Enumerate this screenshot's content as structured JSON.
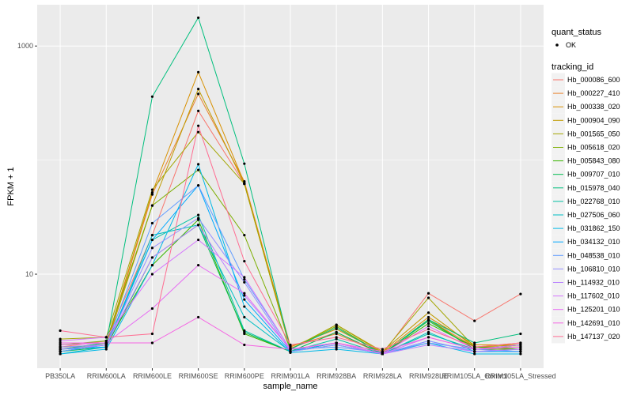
{
  "chart_data": {
    "type": "line",
    "title": "",
    "xlabel": "sample_name",
    "ylabel": "FPKM + 1",
    "y_scale": "log10",
    "ylim": [
      1.5,
      2300
    ],
    "y_ticks": [
      {
        "value": 1000,
        "label": "1000"
      },
      {
        "value": 10,
        "label": "10"
      }
    ],
    "categories": [
      "PB350LA",
      "RRIM600LA",
      "RRIM600LE",
      "RRIM600SE",
      "RRIM600PE",
      "RRIM901LA",
      "RRIM928BA",
      "RRIM928LA",
      "RRIM928LE",
      "RRIM105LA_Control",
      "RRIM105LA_Stressed"
    ],
    "grid": true,
    "legend_placement": "right",
    "legend_quant": {
      "title": "quant_status",
      "entries": [
        "OK"
      ]
    },
    "legend_series_title": "tracking_id",
    "series": [
      {
        "name": "Hb_000086_600",
        "color": "#F8766D",
        "values": [
          2.3,
          2.6,
          22,
          270,
          62,
          2.25,
          3.1,
          2.0,
          6.8,
          3.9,
          6.7
        ]
      },
      {
        "name": "Hb_000227_410",
        "color": "#EA8331",
        "values": [
          2.1,
          2.4,
          50,
          380,
          65,
          2.35,
          3.0,
          2.0,
          4.0,
          2.3,
          2.5
        ]
      },
      {
        "name": "Hb_000338_020",
        "color": "#D89000",
        "values": [
          2.2,
          2.5,
          52,
          590,
          63,
          2.3,
          3.3,
          2.05,
          4.2,
          2.4,
          2.4
        ]
      },
      {
        "name": "Hb_000904_090",
        "color": "#C09B00",
        "values": [
          2.3,
          2.4,
          40,
          420,
          62,
          2.2,
          3.6,
          2.1,
          4.6,
          2.3,
          2.4
        ]
      },
      {
        "name": "Hb_001565_050",
        "color": "#A3A500",
        "values": [
          2.7,
          2.8,
          55,
          176,
          62,
          2.2,
          3.6,
          2.05,
          6.2,
          2.3,
          2.3
        ]
      },
      {
        "name": "Hb_005618_020",
        "color": "#7CAE00",
        "values": [
          2.4,
          2.6,
          40,
          82,
          22,
          2.2,
          3.5,
          2.0,
          4.0,
          2.2,
          2.2
        ]
      },
      {
        "name": "Hb_005843_080",
        "color": "#39B600",
        "values": [
          2.2,
          2.4,
          12,
          30,
          3.0,
          2.1,
          2.5,
          2.0,
          3.7,
          2.3,
          2.2
        ]
      },
      {
        "name": "Hb_009707_010",
        "color": "#00BB4E",
        "values": [
          2.1,
          2.3,
          14,
          27,
          3.1,
          2.1,
          3.1,
          2.0,
          3.9,
          2.2,
          2.4
        ]
      },
      {
        "name": "Hb_015978_040",
        "color": "#00BF7D",
        "values": [
          2.2,
          2.5,
          360,
          1770,
          93,
          2.2,
          3.4,
          2.0,
          4.0,
          2.5,
          3.0
        ]
      },
      {
        "name": "Hb_022768_010",
        "color": "#00C1A3",
        "values": [
          2.1,
          2.4,
          20,
          33,
          3.2,
          2.1,
          2.7,
          2.0,
          3.0,
          2.2,
          2.4
        ]
      },
      {
        "name": "Hb_027506_060",
        "color": "#00BFC4",
        "values": [
          2.0,
          2.3,
          22,
          27,
          4.2,
          2.1,
          2.4,
          2.0,
          3.1,
          2.1,
          2.1
        ]
      },
      {
        "name": "Hb_031862_150",
        "color": "#00B8E7",
        "values": [
          2.0,
          2.2,
          12,
          92,
          5.2,
          2.05,
          2.2,
          2.0,
          2.5,
          2.0,
          2.0
        ]
      },
      {
        "name": "Hb_034132_010",
        "color": "#00A9FF",
        "values": [
          2.2,
          2.3,
          20,
          60,
          6.0,
          2.1,
          2.5,
          2.0,
          2.6,
          2.1,
          2.1
        ]
      },
      {
        "name": "Hb_048538_010",
        "color": "#619CFF",
        "values": [
          2.1,
          2.4,
          28,
          60,
          9.0,
          2.2,
          2.3,
          2.05,
          2.5,
          2.2,
          2.1
        ]
      },
      {
        "name": "Hb_106810_010",
        "color": "#9590FF",
        "values": [
          2.3,
          2.4,
          17,
          31,
          8.5,
          2.1,
          2.4,
          2.0,
          2.6,
          2.1,
          2.2
        ]
      },
      {
        "name": "Hb_114932_010",
        "color": "#B983FF",
        "values": [
          2.2,
          2.4,
          14,
          27,
          6.5,
          2.2,
          2.5,
          2.0,
          2.4,
          2.1,
          2.2
        ]
      },
      {
        "name": "Hb_117602_010",
        "color": "#D575FE",
        "values": [
          2.6,
          2.8,
          10,
          20,
          9.4,
          2.2,
          2.5,
          2.0,
          2.8,
          2.2,
          2.3
        ]
      },
      {
        "name": "Hb_125201_010",
        "color": "#E76BF3",
        "values": [
          2.4,
          2.5,
          5.0,
          12,
          6.8,
          2.2,
          2.5,
          2.0,
          3.5,
          2.2,
          2.4
        ]
      },
      {
        "name": "Hb_142691_010",
        "color": "#F564E3",
        "values": [
          2.5,
          2.5,
          2.5,
          4.2,
          2.4,
          2.2,
          2.5,
          2.1,
          2.8,
          2.2,
          2.3
        ]
      },
      {
        "name": "Hb_147137_020",
        "color": "#FF6C91",
        "values": [
          3.2,
          2.8,
          3.0,
          200,
          13,
          2.4,
          2.8,
          2.2,
          3.3,
          2.3,
          2.5
        ]
      }
    ]
  }
}
